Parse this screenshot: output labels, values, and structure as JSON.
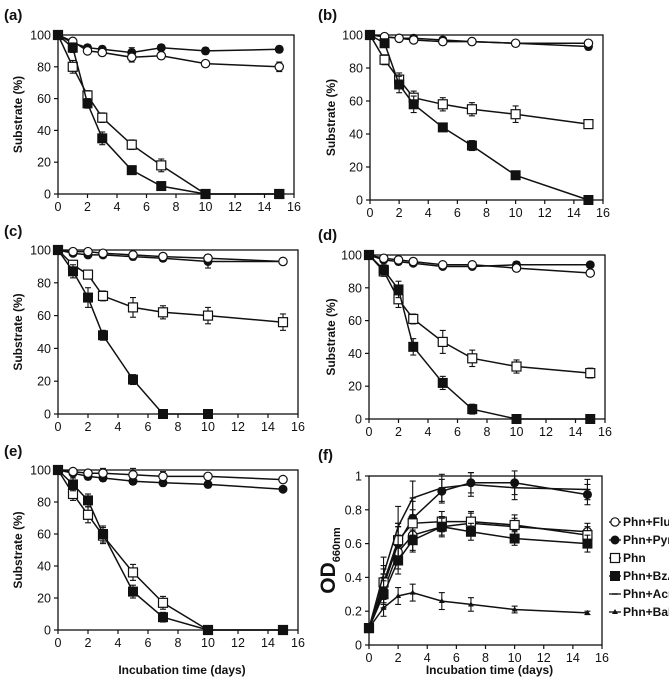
{
  "chart_data": [
    {
      "panel": "(a)",
      "type": "line",
      "ylabel": "Substrate (%)",
      "xlabel": "",
      "xlim": [
        0,
        16
      ],
      "ylim": [
        0,
        100
      ],
      "xticks": [
        "0",
        "2",
        "4",
        "6",
        "8",
        "10",
        "12",
        "14",
        "16"
      ],
      "yticks": [
        "0",
        "20",
        "40",
        "60",
        "80",
        "100"
      ],
      "series": [
        {
          "marker": "filled-circle",
          "x": [
            0,
            1,
            2,
            3,
            5,
            7,
            10,
            15
          ],
          "y": [
            100,
            95,
            92,
            91,
            89,
            92,
            90,
            91
          ],
          "err": [
            0,
            2,
            2,
            2,
            3,
            2,
            2,
            2
          ]
        },
        {
          "marker": "open-circle",
          "x": [
            0,
            1,
            2,
            3,
            5,
            7,
            10,
            15
          ],
          "y": [
            100,
            96,
            90,
            89,
            86,
            87,
            82,
            80
          ],
          "err": [
            0,
            2,
            2,
            2,
            3,
            2,
            2,
            3
          ]
        },
        {
          "marker": "open-square",
          "x": [
            0,
            1,
            2,
            3,
            5,
            7,
            10,
            15
          ],
          "y": [
            100,
            80,
            62,
            48,
            31,
            18,
            0,
            0
          ],
          "err": [
            0,
            4,
            3,
            3,
            3,
            4,
            0,
            0
          ]
        },
        {
          "marker": "filled-square",
          "x": [
            0,
            1,
            2,
            3,
            5,
            7,
            10,
            15
          ],
          "y": [
            100,
            92,
            57,
            35,
            15,
            5,
            0,
            0
          ],
          "err": [
            0,
            3,
            3,
            4,
            2,
            2,
            0,
            0
          ]
        }
      ]
    },
    {
      "panel": "(b)",
      "type": "line",
      "ylabel": "Substrate (%)",
      "xlabel": "",
      "xlim": [
        0,
        16
      ],
      "ylim": [
        0,
        100
      ],
      "xticks": [
        "0",
        "2",
        "4",
        "6",
        "8",
        "10",
        "12",
        "14",
        "16"
      ],
      "yticks": [
        "0",
        "20",
        "40",
        "60",
        "80",
        "100"
      ],
      "series": [
        {
          "marker": "filled-circle",
          "x": [
            0,
            1,
            2,
            3,
            5,
            7,
            10,
            15
          ],
          "y": [
            100,
            99,
            98,
            98,
            97,
            96,
            95,
            93
          ],
          "err": [
            0,
            1,
            1,
            1,
            1,
            2,
            1,
            2
          ]
        },
        {
          "marker": "open-circle",
          "x": [
            0,
            1,
            2,
            3,
            5,
            7,
            10,
            15
          ],
          "y": [
            100,
            99,
            98,
            97,
            96,
            96,
            95,
            95
          ],
          "err": [
            0,
            1,
            1,
            1,
            1,
            1,
            1,
            1
          ]
        },
        {
          "marker": "open-square",
          "x": [
            0,
            1,
            2,
            3,
            5,
            7,
            10,
            15
          ],
          "y": [
            100,
            85,
            73,
            62,
            58,
            55,
            52,
            46
          ],
          "err": [
            0,
            3,
            4,
            4,
            4,
            4,
            5,
            2
          ]
        },
        {
          "marker": "filled-square",
          "x": [
            0,
            1,
            2,
            3,
            5,
            7,
            10,
            15
          ],
          "y": [
            100,
            95,
            70,
            58,
            44,
            33,
            15,
            0
          ],
          "err": [
            0,
            2,
            5,
            5,
            2,
            3,
            2,
            0
          ]
        }
      ]
    },
    {
      "panel": "(c)",
      "type": "line",
      "ylabel": "Substrate (%)",
      "xlabel": "",
      "xlim": [
        0,
        16
      ],
      "ylim": [
        0,
        100
      ],
      "xticks": [
        "0",
        "2",
        "4",
        "6",
        "8",
        "10",
        "12",
        "14",
        "16"
      ],
      "yticks": [
        "0",
        "20",
        "40",
        "60",
        "80",
        "100"
      ],
      "series": [
        {
          "marker": "filled-circle",
          "x": [
            0,
            1,
            2,
            3,
            5,
            7,
            10,
            15
          ],
          "y": [
            100,
            98,
            97,
            97,
            96,
            95,
            93,
            93
          ],
          "err": [
            0,
            1,
            1,
            1,
            2,
            2,
            4,
            2
          ]
        },
        {
          "marker": "open-circle",
          "x": [
            0,
            1,
            2,
            3,
            5,
            7,
            10,
            15
          ],
          "y": [
            100,
            99,
            99,
            98,
            97,
            96,
            95,
            93
          ],
          "err": [
            0,
            1,
            1,
            1,
            2,
            2,
            2,
            2
          ]
        },
        {
          "marker": "open-square",
          "x": [
            0,
            1,
            2,
            3,
            5,
            7,
            10,
            15
          ],
          "y": [
            100,
            91,
            85,
            72,
            65,
            62,
            60,
            56
          ],
          "err": [
            0,
            2,
            2,
            3,
            6,
            4,
            5,
            5
          ]
        },
        {
          "marker": "filled-square",
          "x": [
            0,
            1,
            2,
            3,
            5,
            7,
            10
          ],
          "y": [
            100,
            87,
            71,
            48,
            21,
            0,
            0
          ],
          "err": [
            0,
            4,
            6,
            3,
            3,
            0,
            0
          ]
        }
      ]
    },
    {
      "panel": "(d)",
      "type": "line",
      "ylabel": "Substrate (%)",
      "xlabel": "",
      "xlim": [
        0,
        16
      ],
      "ylim": [
        0,
        100
      ],
      "xticks": [
        "0",
        "2",
        "4",
        "6",
        "8",
        "10",
        "12",
        "14",
        "16"
      ],
      "yticks": [
        "0",
        "20",
        "40",
        "60",
        "80",
        "100"
      ],
      "series": [
        {
          "marker": "filled-circle",
          "x": [
            0,
            1,
            2,
            3,
            5,
            7,
            10,
            15
          ],
          "y": [
            100,
            97,
            96,
            95,
            93,
            93,
            94,
            94
          ],
          "err": [
            0,
            1,
            1,
            1,
            1,
            1,
            2,
            1
          ]
        },
        {
          "marker": "open-circle",
          "x": [
            0,
            1,
            2,
            3,
            5,
            7,
            10,
            15
          ],
          "y": [
            100,
            98,
            97,
            96,
            94,
            94,
            92,
            89
          ],
          "err": [
            0,
            1,
            1,
            1,
            1,
            2,
            2,
            2
          ]
        },
        {
          "marker": "open-square",
          "x": [
            0,
            1,
            2,
            3,
            5,
            7,
            10,
            15
          ],
          "y": [
            100,
            90,
            73,
            61,
            47,
            37,
            32,
            28
          ],
          "err": [
            0,
            3,
            5,
            3,
            7,
            5,
            4,
            3
          ]
        },
        {
          "marker": "filled-square",
          "x": [
            0,
            1,
            2,
            3,
            5,
            7,
            10,
            15
          ],
          "y": [
            100,
            91,
            79,
            44,
            22,
            6,
            0,
            0
          ],
          "err": [
            0,
            3,
            5,
            5,
            4,
            3,
            0,
            0
          ]
        }
      ]
    },
    {
      "panel": "(e)",
      "type": "line",
      "ylabel": "Substrate (%)",
      "xlabel": "Incubation time (days)",
      "xlim": [
        0,
        16
      ],
      "ylim": [
        0,
        100
      ],
      "xticks": [
        "0",
        "2",
        "4",
        "6",
        "8",
        "10",
        "12",
        "14",
        "16"
      ],
      "yticks": [
        "0",
        "20",
        "40",
        "60",
        "80",
        "100"
      ],
      "series": [
        {
          "marker": "filled-circle",
          "x": [
            0,
            1,
            2,
            3,
            5,
            7,
            10,
            15
          ],
          "y": [
            100,
            98,
            96,
            95,
            93,
            92,
            91,
            88
          ],
          "err": [
            0,
            1,
            2,
            2,
            2,
            2,
            2,
            1
          ]
        },
        {
          "marker": "open-circle",
          "x": [
            0,
            1,
            2,
            3,
            5,
            7,
            10,
            15
          ],
          "y": [
            100,
            99,
            98,
            98,
            97,
            96,
            96,
            94
          ],
          "err": [
            0,
            1,
            1,
            3,
            4,
            3,
            2,
            1
          ]
        },
        {
          "marker": "open-square",
          "x": [
            0,
            1,
            2,
            3,
            5,
            7,
            10,
            15
          ],
          "y": [
            100,
            85,
            72,
            59,
            36,
            17,
            0,
            0
          ],
          "err": [
            0,
            4,
            5,
            5,
            5,
            4,
            0,
            0
          ]
        },
        {
          "marker": "filled-square",
          "x": [
            0,
            1,
            2,
            3,
            5,
            7,
            10,
            15
          ],
          "y": [
            100,
            91,
            81,
            60,
            24,
            8,
            0,
            0
          ],
          "err": [
            0,
            4,
            4,
            5,
            4,
            3,
            0,
            0
          ]
        }
      ]
    },
    {
      "panel": "(f)",
      "type": "line",
      "ylabel": "OD",
      "ylabel_sub": "660nm",
      "xlabel": "Incubation time (days)",
      "xlim": [
        0,
        16
      ],
      "ylim": [
        0,
        1
      ],
      "xticks": [
        "0",
        "2",
        "4",
        "6",
        "8",
        "10",
        "12",
        "14",
        "16"
      ],
      "yticks": [
        "0",
        "0.2",
        "0.4",
        "0.6",
        "0.8",
        "1"
      ],
      "series": [
        {
          "name": "Phn+Flu",
          "marker": "open-circle",
          "x": [
            0,
            1,
            2,
            3,
            5,
            7,
            10,
            15
          ],
          "y": [
            0.1,
            0.32,
            0.55,
            0.65,
            0.7,
            0.72,
            0.7,
            0.67
          ],
          "err": [
            0,
            0.08,
            0.1,
            0.1,
            0.06,
            0.06,
            0.05,
            0.05
          ]
        },
        {
          "name": "Phn+Pyr",
          "marker": "filled-circle",
          "x": [
            0,
            1,
            2,
            3,
            5,
            7,
            10,
            15
          ],
          "y": [
            0.1,
            0.35,
            0.6,
            0.75,
            0.91,
            0.96,
            0.96,
            0.89
          ],
          "err": [
            0,
            0.1,
            0.12,
            0.1,
            0.07,
            0.06,
            0.07,
            0.06
          ]
        },
        {
          "name": "Phn",
          "marker": "open-square",
          "x": [
            0,
            1,
            2,
            3,
            5,
            7,
            10,
            15
          ],
          "y": [
            0.1,
            0.37,
            0.62,
            0.72,
            0.73,
            0.73,
            0.71,
            0.65
          ],
          "err": [
            0,
            0.1,
            0.1,
            0.08,
            0.06,
            0.06,
            0.06,
            0.05
          ]
        },
        {
          "name": "Phn+BzA",
          "marker": "filled-square",
          "x": [
            0,
            1,
            2,
            3,
            5,
            7,
            10,
            15
          ],
          "y": [
            0.1,
            0.3,
            0.5,
            0.62,
            0.7,
            0.67,
            0.63,
            0.6
          ],
          "err": [
            0,
            0.08,
            0.08,
            0.06,
            0.05,
            0.05,
            0.04,
            0.05
          ]
        },
        {
          "name": "Phn+Acn",
          "marker": "small-dash",
          "x": [
            0,
            1,
            2,
            3,
            5,
            7,
            10,
            15
          ],
          "y": [
            0.1,
            0.42,
            0.7,
            0.87,
            0.93,
            0.95,
            0.93,
            0.92
          ],
          "err": [
            0,
            0.1,
            0.12,
            0.1,
            0.08,
            0.07,
            0.07,
            0.06
          ]
        },
        {
          "name": "Phn+BaP",
          "marker": "triangle",
          "x": [
            0,
            1,
            2,
            3,
            5,
            7,
            10,
            15
          ],
          "y": [
            0.1,
            0.22,
            0.29,
            0.31,
            0.26,
            0.24,
            0.21,
            0.19
          ],
          "err": [
            0,
            0.05,
            0.05,
            0.05,
            0.05,
            0.04,
            0.02,
            0.01
          ]
        }
      ]
    }
  ]
}
